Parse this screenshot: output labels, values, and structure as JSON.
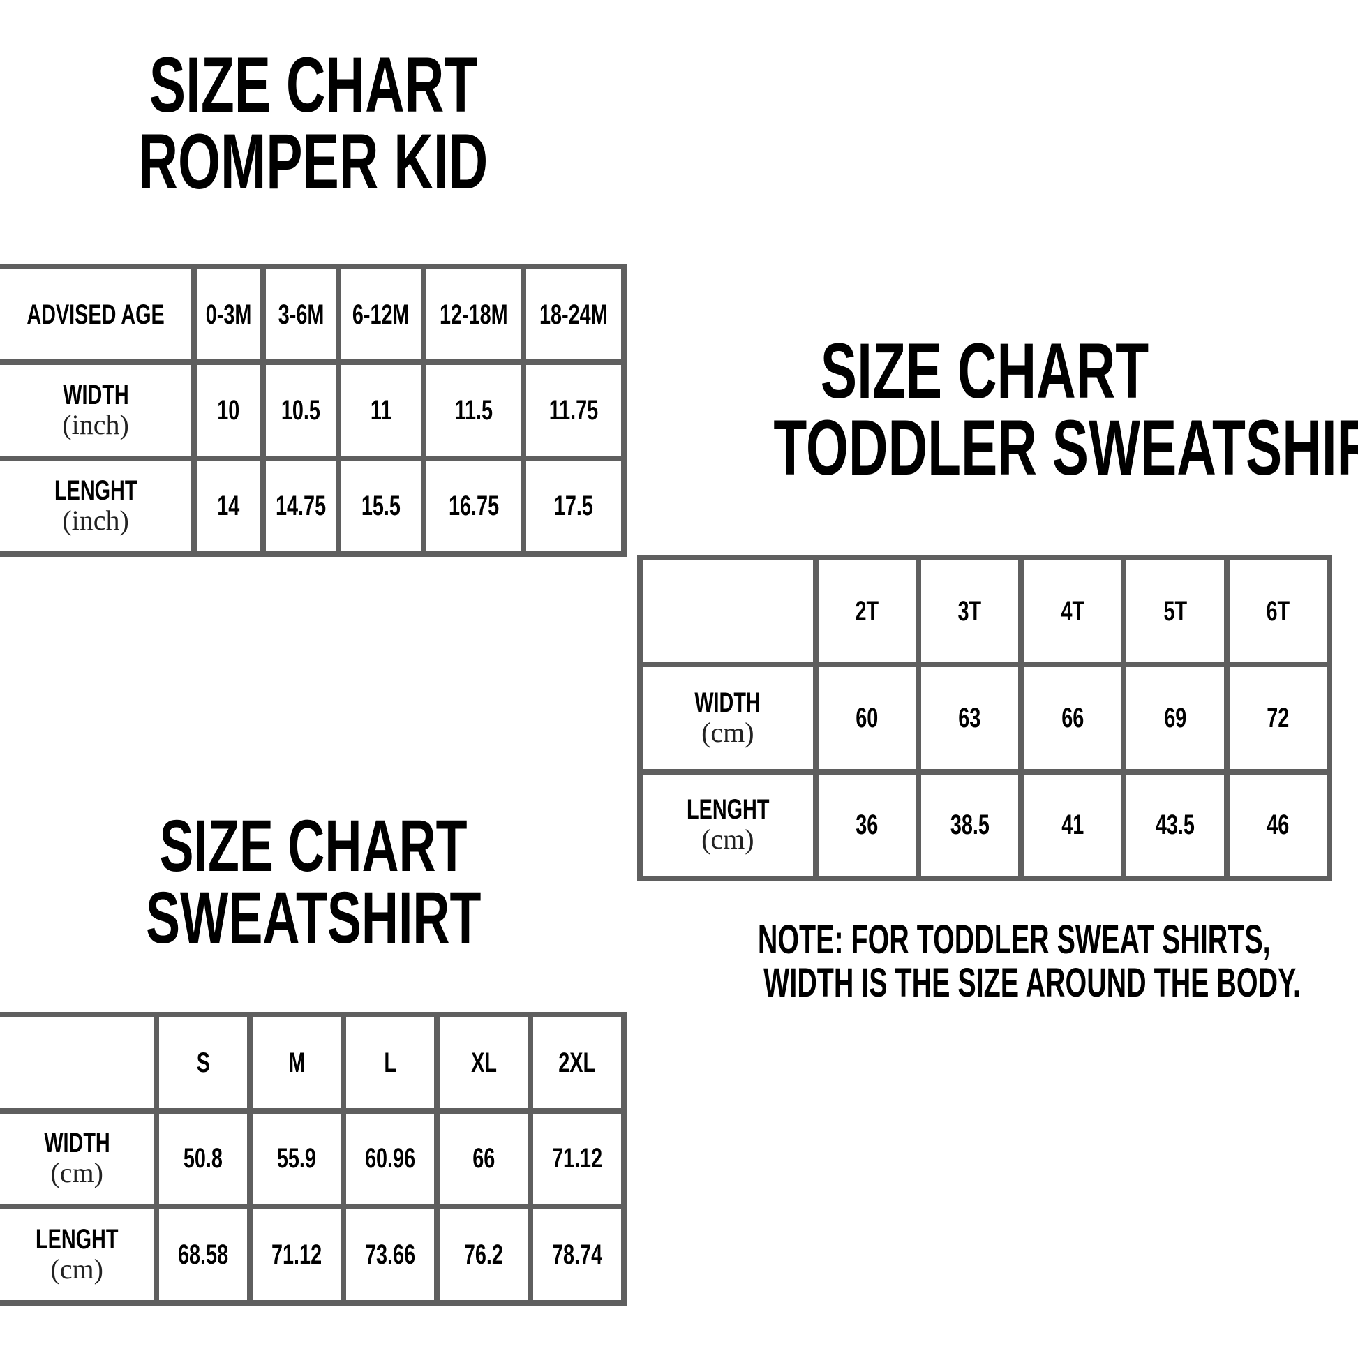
{
  "romper": {
    "title_line1": "SIZE CHART",
    "title_line2": "ROMPER KID",
    "header_label": "ADVISED AGE",
    "columns": [
      "0-3M",
      "3-6M",
      "6-12M",
      "12-18M",
      "18-24M"
    ],
    "rows": [
      {
        "label": "WIDTH",
        "unit": "(inch)",
        "values": [
          "10",
          "10.5",
          "11",
          "11.5",
          "11.75"
        ]
      },
      {
        "label": "LENGHT",
        "unit": "(inch)",
        "values": [
          "14",
          "14.75",
          "15.5",
          "16.75",
          "17.5"
        ]
      }
    ]
  },
  "toddler": {
    "title_line1": "SIZE CHART",
    "title_line2": "TODDLER SWEATSHIRT",
    "header_label": "",
    "columns": [
      "2T",
      "3T",
      "4T",
      "5T",
      "6T"
    ],
    "rows": [
      {
        "label": "WIDTH",
        "unit": "(cm)",
        "values": [
          "60",
          "63",
          "66",
          "69",
          "72"
        ]
      },
      {
        "label": "LENGHT",
        "unit": "(cm)",
        "values": [
          "36",
          "38.5",
          "41",
          "43.5",
          "46"
        ]
      }
    ],
    "note_line1": "NOTE: FOR TODDLER SWEAT SHIRTS,",
    "note_line2": "WIDTH IS THE SIZE AROUND THE BODY."
  },
  "sweatshirt": {
    "title_line1": "SIZE CHART",
    "title_line2": "SWEATSHIRT",
    "header_label": "",
    "columns": [
      "S",
      "M",
      "L",
      "XL",
      "2XL"
    ],
    "rows": [
      {
        "label": "WIDTH",
        "unit": "(cm)",
        "values": [
          "50.8",
          "55.9",
          "60.96",
          "66",
          "71.12"
        ]
      },
      {
        "label": "LENGHT",
        "unit": "(cm)",
        "values": [
          "68.58",
          "71.12",
          "73.66",
          "76.2",
          "78.74"
        ]
      }
    ]
  },
  "colors": {
    "border": "#5f5f5f",
    "text": "#000000",
    "background": "#ffffff"
  }
}
